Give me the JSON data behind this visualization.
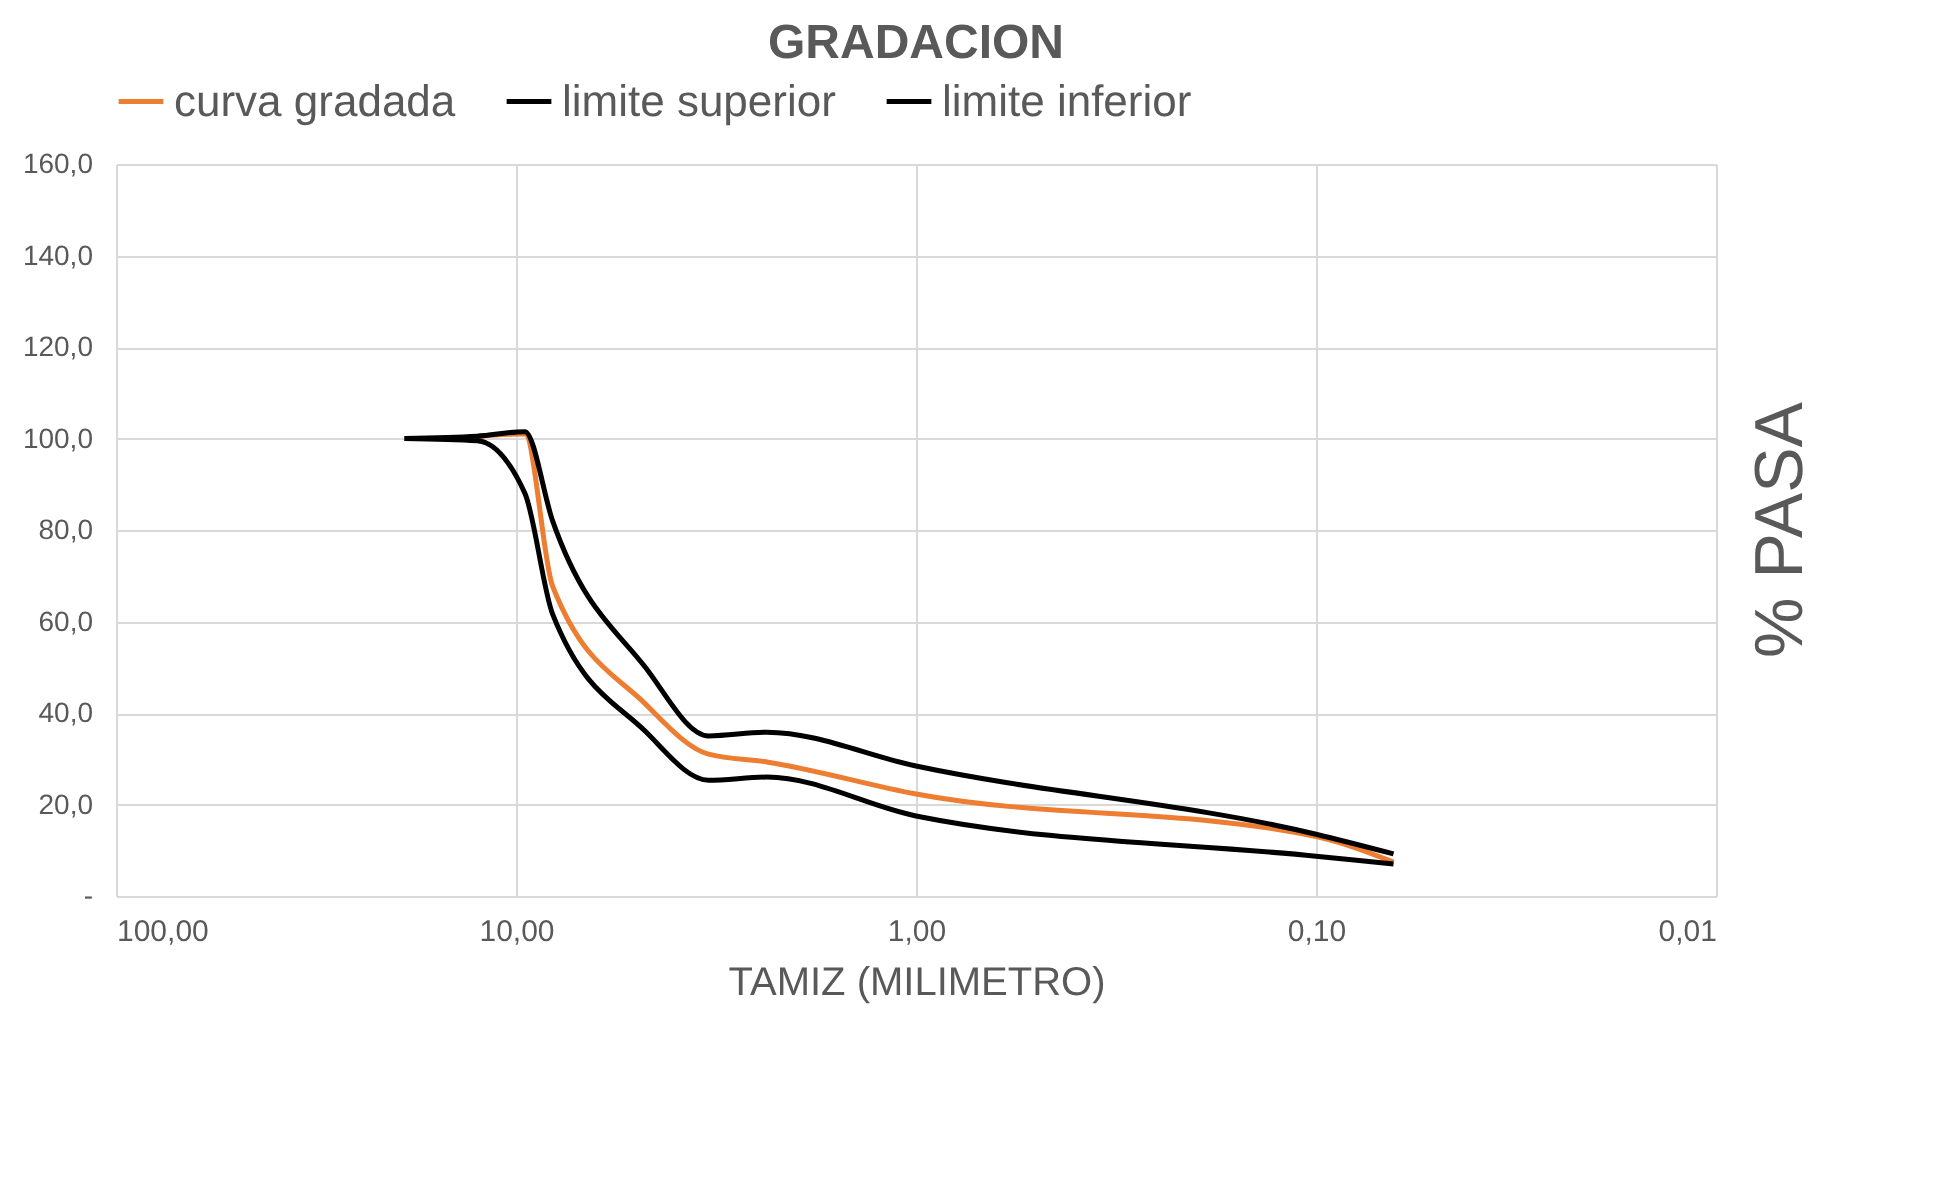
{
  "chart_data": {
    "type": "line",
    "title": "GRADACION",
    "xlabel": "TAMIZ (MILIMETRO)",
    "ylabel": "% PASA",
    "x": [
      19,
      12.5,
      9.5,
      8.1,
      4.75,
      3.3,
      2.36,
      1.0,
      0.1,
      0.064
    ],
    "series": [
      {
        "name": "curva gradada",
        "color": "#ed7d31",
        "values": [
          null,
          100.5,
          101,
          67.7,
          42,
          31,
          29.3,
          22.3,
          13,
          7.4
        ]
      },
      {
        "name": "limite superior",
        "color": "#000000",
        "values": [
          100,
          100.5,
          101.5,
          82,
          50,
          35,
          35.8,
          28.4,
          13.5,
          9.2
        ]
      },
      {
        "name": "limite inferior",
        "color": "#000000",
        "values": [
          100,
          99.5,
          88,
          61.6,
          36,
          25.3,
          26,
          17.5,
          8.7,
          7.0
        ]
      }
    ],
    "log": "x",
    "xlim": [
      100,
      0.01
    ],
    "xticks": [
      {
        "value": 100,
        "label": "100,00"
      },
      {
        "value": 10,
        "label": "10,00"
      },
      {
        "value": 1,
        "label": "1,00"
      },
      {
        "value": 0.1,
        "label": "0,10"
      },
      {
        "value": 0.01,
        "label": "0,01"
      }
    ],
    "ylim": [
      0,
      160
    ],
    "yticks": [
      {
        "value": 0,
        "label": "-"
      },
      {
        "value": 20,
        "label": "20,0"
      },
      {
        "value": 40,
        "label": "40,0"
      },
      {
        "value": 60,
        "label": "60,0"
      },
      {
        "value": 80,
        "label": "80,0"
      },
      {
        "value": 100,
        "label": "100,0"
      },
      {
        "value": 120,
        "label": "120,0"
      },
      {
        "value": 140,
        "label": "140,0"
      },
      {
        "value": 160,
        "label": "160,0"
      }
    ],
    "grid": true,
    "legend": "top",
    "marker": "none",
    "line_style": "solid"
  }
}
